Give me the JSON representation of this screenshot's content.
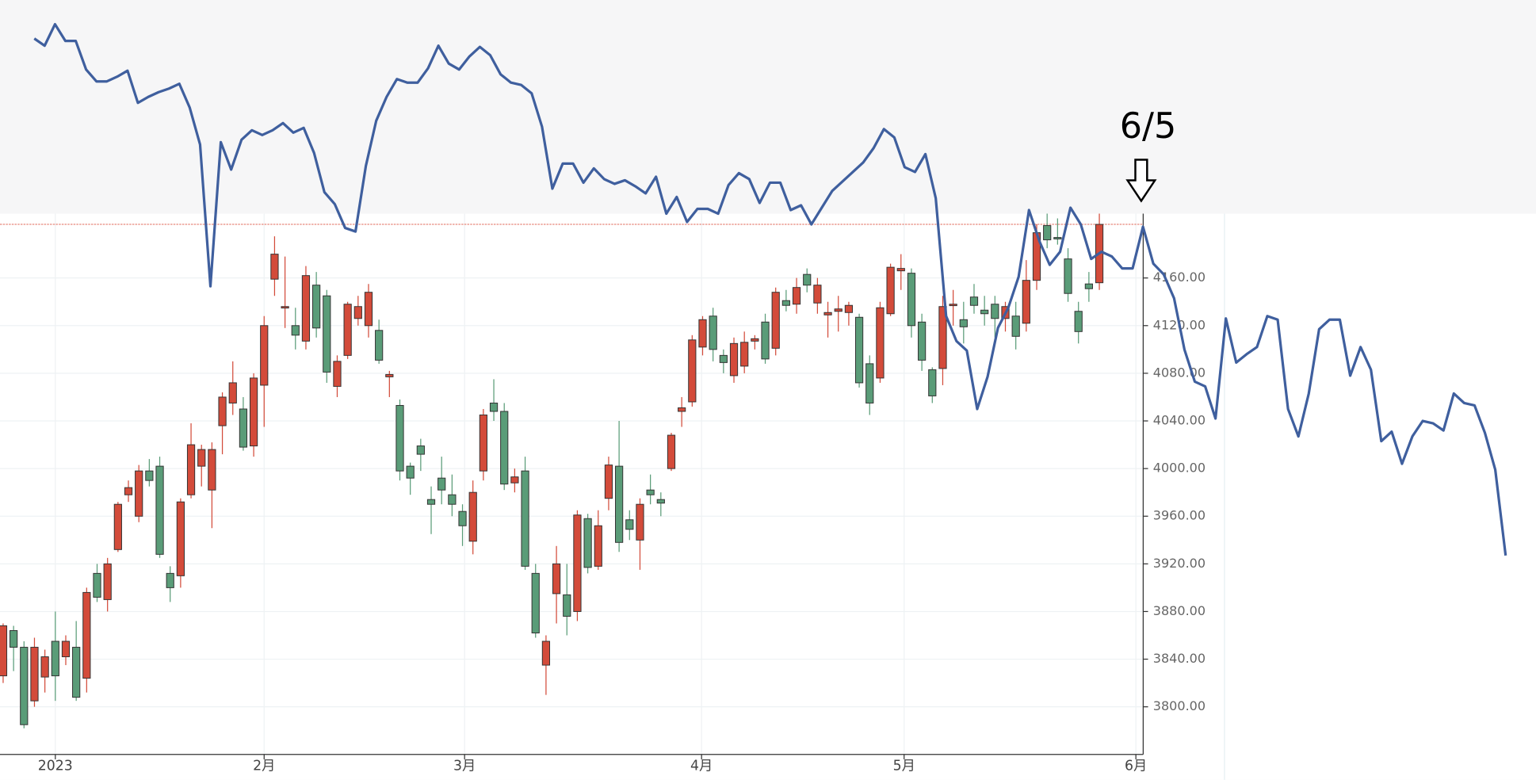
{
  "chart_data": {
    "type": "candlestick",
    "up_color": "#d34b3a",
    "down_color": "#5a9c78",
    "ylim": [
      3760,
      4214
    ],
    "xlim": [
      -0.3,
      109.2
    ],
    "yticks": [
      {
        "value": 3800,
        "label": "3800.00"
      },
      {
        "value": 3840,
        "label": "3840.00"
      },
      {
        "value": 3880,
        "label": "3880.00"
      },
      {
        "value": 3920,
        "label": "3920.00"
      },
      {
        "value": 3960,
        "label": "3960.00"
      },
      {
        "value": 4000,
        "label": "4000.00"
      },
      {
        "value": 4040,
        "label": "4040.00"
      },
      {
        "value": 4080,
        "label": "4080.00"
      },
      {
        "value": 4120,
        "label": "4120.00"
      },
      {
        "value": 4160,
        "label": "4160.00"
      }
    ],
    "xticks": [
      {
        "value": 5,
        "label": "2023"
      },
      {
        "value": 25,
        "label": "2月"
      },
      {
        "value": 44.2,
        "label": "3月"
      },
      {
        "value": 66.9,
        "label": "4月"
      },
      {
        "value": 86.3,
        "label": "5月"
      },
      {
        "value": 108.5,
        "label": "6月"
      }
    ],
    "grid": true,
    "reference_line": {
      "value": 4205,
      "color": "#e06a5a"
    },
    "annotation": "6/5",
    "open": [
      3826,
      3864,
      3850,
      3805,
      3825,
      3855,
      3842,
      3850,
      3824,
      3912,
      3890,
      3932,
      3978,
      3960,
      3998,
      4002,
      3912,
      3910,
      3978,
      4002,
      3982,
      4036,
      4055,
      4050,
      4019,
      4070,
      4159,
      4136,
      4120,
      4107,
      4154,
      4145,
      4069,
      4095,
      4126,
      4120,
      4116,
      4077,
      4053,
      4002,
      4019,
      3974,
      3992,
      3978,
      3964,
      3939,
      3998,
      4055,
      4048,
      3988,
      3998,
      3912,
      3835,
      3895,
      3894,
      3880,
      3958,
      3918,
      3975,
      4002,
      3957,
      3940,
      3982,
      3974,
      4000,
      4048,
      4056,
      4102,
      4128,
      4095,
      4078,
      4086,
      4107,
      4123,
      4101,
      4141,
      4138,
      4163,
      4139,
      4129,
      4132,
      4131,
      4127,
      4088,
      4076,
      4130,
      4166,
      4164,
      4123,
      4083,
      4084,
      4137,
      4125,
      4144,
      4133,
      4138,
      4126,
      4128,
      4122,
      4158,
      4204,
      4194,
      4176,
      4132,
      4155,
      4156
    ],
    "close": [
      3868,
      3850,
      3785,
      3850,
      3842,
      3826,
      3855,
      3808,
      3896,
      3892,
      3920,
      3970,
      3984,
      3998,
      3990,
      3928,
      3900,
      3972,
      4020,
      4016,
      4016,
      4060,
      4072,
      4018,
      4076,
      4120,
      4180,
      4136,
      4112,
      4162,
      4118,
      4081,
      4090,
      4138,
      4136,
      4148,
      4091,
      4079,
      3998,
      3992,
      4012,
      3970,
      3982,
      3970,
      3952,
      3980,
      4045,
      4048,
      3987,
      3993,
      3918,
      3862,
      3855,
      3920,
      3876,
      3961,
      3917,
      3952,
      4003,
      3938,
      3949,
      3970,
      3978,
      3971,
      4028,
      4051,
      4108,
      4125,
      4100,
      4089,
      4105,
      4106,
      4109,
      4092,
      4148,
      4137,
      4152,
      4154,
      4154,
      4131,
      4134,
      4137,
      4072,
      4055,
      4135,
      4169,
      4168,
      4120,
      4091,
      4061,
      4136,
      4138,
      4119,
      4137,
      4130,
      4126,
      4136,
      4111,
      4158,
      4198,
      4192,
      4193,
      4147,
      4115,
      4151,
      4205
    ],
    "high": [
      3870,
      3868,
      3855,
      3858,
      3848,
      3880,
      3860,
      3872,
      3900,
      3920,
      3925,
      3972,
      3990,
      4003,
      4008,
      4010,
      3918,
      3975,
      4038,
      4020,
      4022,
      4064,
      4090,
      4060,
      4080,
      4128,
      4195,
      4178,
      4135,
      4170,
      4165,
      4150,
      4095,
      4140,
      4145,
      4155,
      4125,
      4082,
      4058,
      4005,
      4025,
      3985,
      4010,
      3995,
      3970,
      3990,
      4050,
      4075,
      4055,
      4000,
      4010,
      3920,
      3860,
      3935,
      3920,
      3965,
      3962,
      3965,
      4010,
      4040,
      3965,
      3975,
      3995,
      3980,
      4030,
      4060,
      4112,
      4128,
      4135,
      4100,
      4110,
      4115,
      4112,
      4130,
      4152,
      4150,
      4160,
      4168,
      4160,
      4140,
      4145,
      4140,
      4130,
      4095,
      4140,
      4172,
      4180,
      4168,
      4130,
      4085,
      4145,
      4150,
      4140,
      4155,
      4145,
      4145,
      4140,
      4140,
      4175,
      4205,
      4215,
      4210,
      4185,
      4140,
      4165,
      4215
    ],
    "low": [
      3820,
      3830,
      3782,
      3800,
      3812,
      3805,
      3835,
      3805,
      3812,
      3888,
      3880,
      3930,
      3972,
      3955,
      3985,
      3925,
      3888,
      3900,
      3975,
      3985,
      3950,
      4012,
      4045,
      4015,
      4010,
      4035,
      4145,
      4118,
      4100,
      4100,
      4110,
      4072,
      4060,
      4092,
      4120,
      4110,
      4088,
      4060,
      3990,
      3978,
      3998,
      3945,
      3970,
      3960,
      3935,
      3928,
      3990,
      4040,
      3982,
      3980,
      3915,
      3858,
      3810,
      3870,
      3860,
      3872,
      3912,
      3915,
      3965,
      3930,
      3940,
      3915,
      3970,
      3960,
      3998,
      4035,
      4052,
      4095,
      4090,
      4080,
      4072,
      4080,
      4100,
      4088,
      4095,
      4132,
      4130,
      4148,
      4130,
      4110,
      4115,
      4120,
      4068,
      4045,
      4072,
      4128,
      4150,
      4110,
      4082,
      4055,
      4070,
      4120,
      4105,
      4130,
      4120,
      4110,
      4115,
      4100,
      4115,
      4150,
      4185,
      4188,
      4140,
      4105,
      4140,
      4150
    ],
    "overlay": {
      "color": "#3f5f9e",
      "values": [
        4361,
        4355,
        4373,
        4359,
        4359,
        4335,
        4325,
        4325,
        4329,
        4334,
        4307,
        4312,
        4316,
        4319,
        4323,
        4303,
        4272,
        4153,
        4274,
        4251,
        4276,
        4284,
        4280,
        4284,
        4290,
        4282,
        4286,
        4265,
        4232,
        4222,
        4202,
        4199,
        4254,
        4292,
        4312,
        4327,
        4324,
        4324,
        4336,
        4355,
        4340,
        4335,
        4346,
        4354,
        4347,
        4331,
        4324,
        4322,
        4315,
        4287,
        4235,
        4256,
        4256,
        4240,
        4252,
        4243,
        4239,
        4242,
        4237,
        4231,
        4245,
        4214,
        4228,
        4207,
        4218,
        4218,
        4214,
        4238,
        4248,
        4243,
        4223,
        4240,
        4240,
        4217,
        4221,
        4205,
        4219,
        4233,
        4241,
        4249,
        4257,
        4269,
        4285,
        4278,
        4253,
        4249,
        4264,
        4227,
        4128,
        4107,
        4099,
        4050,
        4077,
        4118,
        4135,
        4161,
        4217,
        4191,
        4171,
        4182,
        4219,
        4205,
        4176,
        4182,
        4178,
        4168,
        4168,
        4203,
        4172,
        4163,
        4143,
        4100,
        4073,
        4069,
        4042,
        4126,
        4089,
        4096,
        4102,
        4128,
        4125,
        4050,
        4027,
        4063,
        4117,
        4125,
        4125,
        4078,
        4102,
        4083,
        4023,
        4031,
        4004,
        4027,
        4040,
        4038,
        4032,
        4063,
        4055,
        4053,
        4030,
        3999,
        3927
      ]
    }
  }
}
